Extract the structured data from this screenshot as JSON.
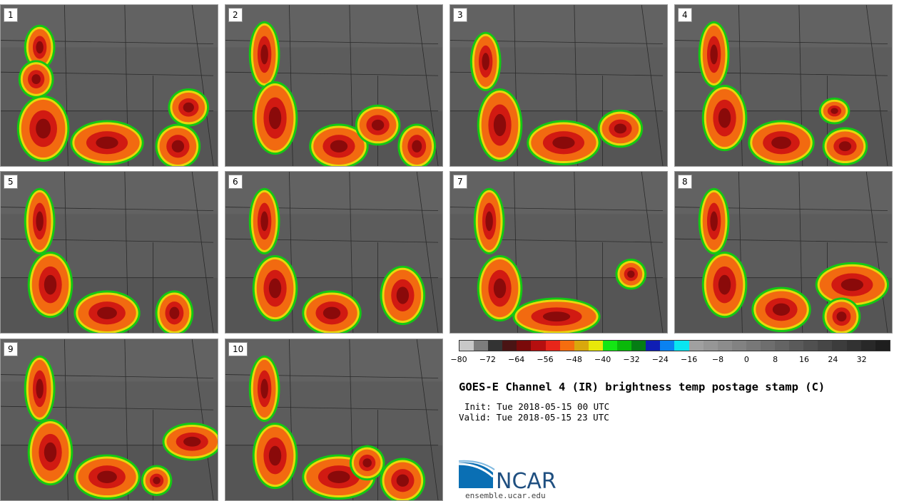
{
  "panels": [
    {
      "label": "1"
    },
    {
      "label": "2"
    },
    {
      "label": "3"
    },
    {
      "label": "4"
    },
    {
      "label": "5"
    },
    {
      "label": "6"
    },
    {
      "label": "7"
    },
    {
      "label": "8"
    },
    {
      "label": "9"
    },
    {
      "label": "10"
    }
  ],
  "colorbar": {
    "colors": [
      "#c8c8c8",
      "#7d7d7d",
      "#333333",
      "#4a1414",
      "#7a0a0a",
      "#b50f0f",
      "#e8261a",
      "#f56d0f",
      "#d9a80d",
      "#e8e80a",
      "#14e614",
      "#0ab90a",
      "#057d14",
      "#0f1eb4",
      "#0a82f0",
      "#0ae6f0",
      "#a0a0a0",
      "#969696",
      "#8c8c8c",
      "#828282",
      "#787878",
      "#6e6e6e",
      "#646464",
      "#5a5a5a",
      "#505050",
      "#464646",
      "#3c3c3c",
      "#323232",
      "#282828",
      "#1e1e1e"
    ],
    "ticks": [
      "−80",
      "−72",
      "−64",
      "−56",
      "−48",
      "−40",
      "−32",
      "−24",
      "−16",
      "−8",
      "0",
      "8",
      "16",
      "24",
      "32"
    ]
  },
  "title": "GOES-E Channel 4 (IR) brightness temp postage stamp (C)",
  "init": "Init: Tue 2018-05-15 00 UTC",
  "valid": "Valid: Tue 2018-05-15 23 UTC",
  "logo_text": "NCAR",
  "site": "ensemble.ucar.edu"
}
